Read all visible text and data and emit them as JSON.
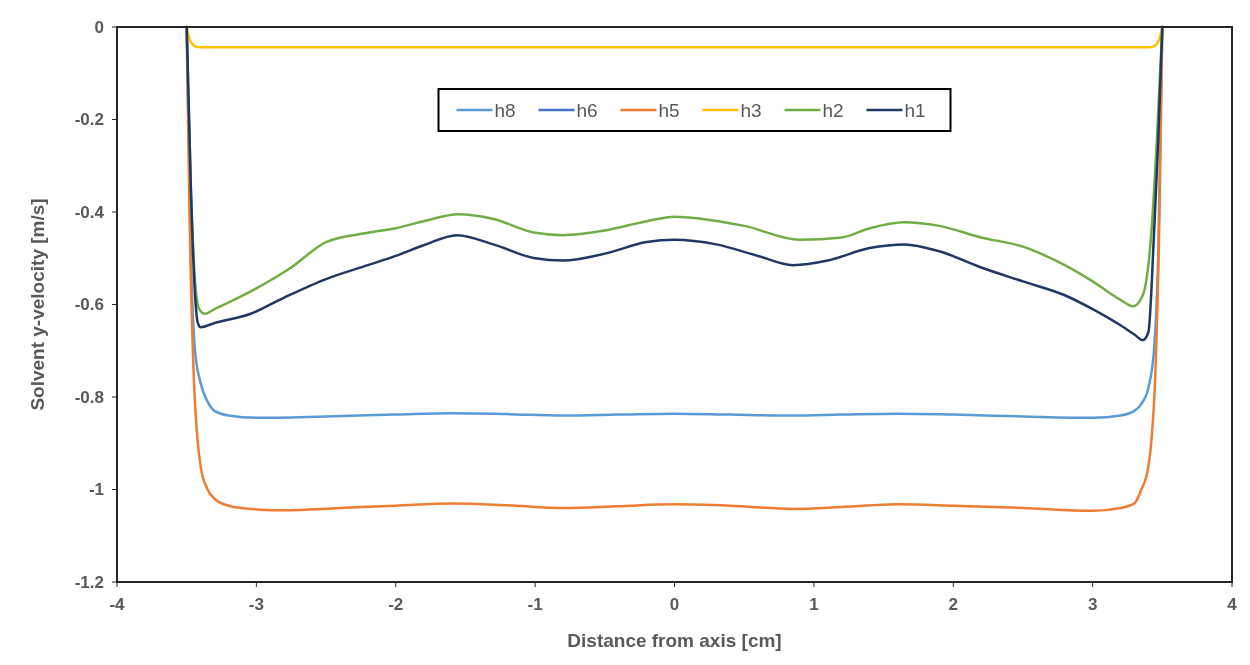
{
  "chart_data": {
    "type": "line",
    "xlabel": "Distance from axis  [cm]",
    "ylabel": "Solvent y-velocity [m/s]",
    "xlim": [
      -4,
      4
    ],
    "ylim": [
      -1.2,
      0
    ],
    "xticks": [
      -4,
      -3,
      -2,
      -1,
      0,
      1,
      2,
      3,
      4
    ],
    "yticks": [
      {
        "value": -1.2,
        "label": "-1.2"
      },
      {
        "value": -1,
        "label": "-1"
      },
      {
        "value": -0.8,
        "label": "-0.8"
      },
      {
        "value": -0.6,
        "label": "-0.6"
      },
      {
        "value": -0.4,
        "label": "-0.4"
      },
      {
        "value": -0.2,
        "label": "-0.2"
      },
      0
    ],
    "grid": false,
    "legend": "top",
    "marker": "none",
    "line_style": "solid",
    "series": [
      {
        "name": "h8",
        "color": "#5b9bd5",
        "x": [
          -3.5,
          -3.47,
          -3.44,
          -3.4,
          -3.35,
          -3.3,
          -3.2,
          -3,
          -2.5,
          -2,
          -1.6,
          -1.2,
          -0.8,
          -0.4,
          0,
          0.4,
          0.85,
          1.2,
          1.6,
          2,
          2.5,
          3,
          3.2,
          3.3,
          3.35,
          3.4,
          3.44,
          3.47,
          3.5
        ],
        "values": [
          0,
          -0.5,
          -0.7,
          -0.77,
          -0.81,
          -0.83,
          -0.84,
          -0.845,
          -0.842,
          -0.838,
          -0.835,
          -0.837,
          -0.84,
          -0.838,
          -0.836,
          -0.838,
          -0.84,
          -0.838,
          -0.836,
          -0.838,
          -0.842,
          -0.845,
          -0.84,
          -0.83,
          -0.815,
          -0.78,
          -0.7,
          -0.5,
          0
        ]
      },
      {
        "name": "h6",
        "color": "#4472c4"
      },
      {
        "name": "h5",
        "color": "#ed7d31",
        "x": [
          -3.5,
          -3.48,
          -3.45,
          -3.42,
          -3.4,
          -3.35,
          -3.3,
          -3.2,
          -3,
          -2.8,
          -2.4,
          -2,
          -1.6,
          -1.2,
          -0.8,
          -0.4,
          0,
          0.4,
          0.85,
          1.2,
          1.6,
          2,
          2.5,
          3,
          3.2,
          3.3,
          3.35,
          3.4,
          3.42,
          3.45,
          3.48,
          3.5
        ],
        "values": [
          0,
          -0.4,
          -0.75,
          -0.9,
          -0.95,
          -1.0,
          -1.02,
          -1.035,
          -1.043,
          -1.045,
          -1.04,
          -1.035,
          -1.03,
          -1.034,
          -1.04,
          -1.036,
          -1.032,
          -1.035,
          -1.042,
          -1.038,
          -1.032,
          -1.035,
          -1.04,
          -1.046,
          -1.04,
          -1.03,
          -1.0,
          -0.95,
          -0.9,
          -0.75,
          -0.4,
          0
        ]
      },
      {
        "name": "h3",
        "color": "#ffc000",
        "x": [
          -3.5,
          -3.48,
          -3.46,
          -3.43,
          -3.4,
          0,
          3.4,
          3.43,
          3.46,
          3.48,
          3.5
        ],
        "values": [
          0,
          -0.025,
          -0.037,
          -0.043,
          -0.044,
          -0.044,
          -0.044,
          -0.043,
          -0.037,
          -0.025,
          0
        ]
      },
      {
        "name": "h2",
        "color": "#70ad47",
        "x": [
          -3.5,
          -3.47,
          -3.44,
          -3.41,
          -3.37,
          -3.3,
          -3,
          -2.75,
          -2.5,
          -2.2,
          -2,
          -1.8,
          -1.55,
          -1.3,
          -1,
          -0.8,
          -0.5,
          -0.2,
          0,
          0.2,
          0.5,
          0.9,
          1.2,
          1.4,
          1.65,
          1.9,
          2.2,
          2.5,
          2.8,
          3,
          3.2,
          3.29,
          3.36,
          3.42,
          3.46,
          3.5
        ],
        "values": [
          0,
          -0.35,
          -0.55,
          -0.61,
          -0.62,
          -0.61,
          -0.565,
          -0.52,
          -0.465,
          -0.445,
          -0.435,
          -0.42,
          -0.405,
          -0.415,
          -0.445,
          -0.45,
          -0.44,
          -0.42,
          -0.41,
          -0.415,
          -0.43,
          -0.46,
          -0.455,
          -0.435,
          -0.422,
          -0.43,
          -0.455,
          -0.475,
          -0.515,
          -0.55,
          -0.59,
          -0.604,
          -0.58,
          -0.45,
          -0.25,
          0
        ]
      },
      {
        "name": "h1",
        "color": "#1f3864",
        "x": [
          -3.5,
          -3.47,
          -3.44,
          -3.42,
          -3.4,
          -3.3,
          -3.04,
          -2.8,
          -2.5,
          -2.2,
          -2,
          -1.8,
          -1.56,
          -1.3,
          -1,
          -0.8,
          -0.5,
          -0.2,
          0,
          0.3,
          0.6,
          0.85,
          1.1,
          1.4,
          1.65,
          1.9,
          2.2,
          2.5,
          2.8,
          3,
          3.2,
          3.3,
          3.36,
          3.4,
          3.44,
          3.47,
          3.5
        ],
        "values": [
          0,
          -0.35,
          -0.58,
          -0.64,
          -0.649,
          -0.64,
          -0.62,
          -0.585,
          -0.545,
          -0.515,
          -0.495,
          -0.472,
          -0.45,
          -0.47,
          -0.5,
          -0.505,
          -0.49,
          -0.465,
          -0.46,
          -0.47,
          -0.495,
          -0.515,
          -0.505,
          -0.478,
          -0.47,
          -0.485,
          -0.52,
          -0.55,
          -0.58,
          -0.61,
          -0.645,
          -0.665,
          -0.677,
          -0.66,
          -0.45,
          -0.25,
          0
        ]
      }
    ]
  }
}
